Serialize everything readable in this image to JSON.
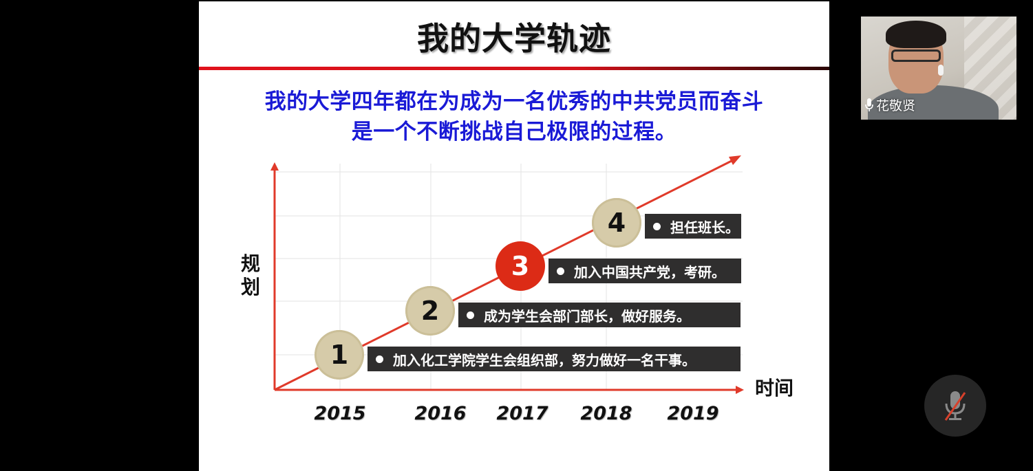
{
  "slide": {
    "title": "我的大学轨迹",
    "subtitle_line1": "我的大学四年都在为成为一名优秀的中共党员而奋斗",
    "subtitle_line2": "是一个不断挑战自己极限的过程。",
    "title_rule_color": "#e0121b",
    "subtitle_color": "#1a1ad6"
  },
  "chart_data": {
    "type": "line",
    "ylabel": "规划",
    "xlabel": "时间",
    "x_ticks": [
      "2015",
      "2016",
      "2017",
      "2018",
      "2019"
    ],
    "trend": "increasing",
    "grid": true,
    "milestones": [
      {
        "number": "1",
        "text": "加入化工学院学生会组织部，努力做好一名干事。",
        "active": false
      },
      {
        "number": "2",
        "text": "成为学生会部门部长，做好服务。",
        "active": false
      },
      {
        "number": "3",
        "text": "加入中国共产党，考研。",
        "active": true
      },
      {
        "number": "4",
        "text": "担任班长。",
        "active": false
      }
    ],
    "colors": {
      "axis": "#e03a2a",
      "trend_line": "#e03a2a",
      "circle": "#d6cba9",
      "active_circle": "#dc2b16",
      "label_box": "#2f2e2e"
    }
  },
  "participant": {
    "name": "花敬贤",
    "mic_icon": "microphone-icon"
  },
  "controls": {
    "mute_icon": "microphone-muted-icon"
  }
}
